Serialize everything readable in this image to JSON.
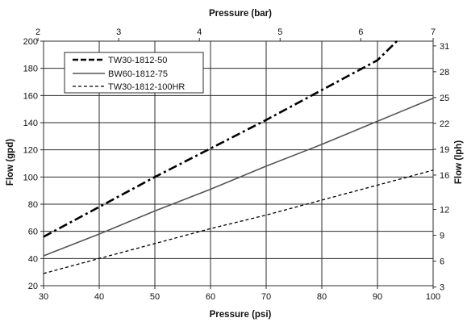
{
  "chart_data": {
    "type": "line",
    "xlabel": "Pressure (psi)",
    "x2label": "Pressure (bar)",
    "ylabel": "Flow (gpd)",
    "y2label": "Flow (lph)",
    "xlim": [
      30,
      100
    ],
    "ylim": [
      20,
      200
    ],
    "x_ticks": [
      "30",
      "40",
      "50",
      "60",
      "70",
      "80",
      "90",
      "100"
    ],
    "y_ticks": [
      "20",
      "40",
      "60",
      "80",
      "100",
      "120",
      "140",
      "160",
      "180",
      "200"
    ],
    "x2_ticks": [
      {
        "label": "2",
        "psi": 29.0
      },
      {
        "label": "3",
        "psi": 43.5
      },
      {
        "label": "4",
        "psi": 58.0
      },
      {
        "label": "5",
        "psi": 72.5
      },
      {
        "label": "6",
        "psi": 87.0
      },
      {
        "label": "7",
        "psi": 101.5
      }
    ],
    "y2_ticks": [
      {
        "label": "3",
        "gpd": 19.0
      },
      {
        "label": "6",
        "gpd": 38.0
      },
      {
        "label": "9",
        "gpd": 57.1
      },
      {
        "label": "12",
        "gpd": 76.1
      },
      {
        "label": "16",
        "gpd": 101.4
      },
      {
        "label": "19",
        "gpd": 120.4
      },
      {
        "label": "22",
        "gpd": 139.5
      },
      {
        "label": "25",
        "gpd": 158.5
      },
      {
        "label": "28",
        "gpd": 177.5
      },
      {
        "label": "31",
        "gpd": 196.5
      }
    ],
    "grid": true,
    "legend_position": "top-left",
    "series": [
      {
        "name": "TW30-1812-50",
        "style": "dash-dot-bold",
        "color": "#000000",
        "x": [
          30,
          40,
          50,
          60,
          70,
          80,
          90,
          93.5
        ],
        "y": [
          56,
          78,
          100,
          121,
          142,
          164,
          186,
          200
        ]
      },
      {
        "name": "BW60-1812-75",
        "style": "solid",
        "color": "#555555",
        "x": [
          30,
          40,
          50,
          60,
          70,
          80,
          90,
          100
        ],
        "y": [
          42,
          58,
          75,
          91,
          108,
          124,
          141,
          158
        ]
      },
      {
        "name": "TW30-1812-100HR",
        "style": "dashed",
        "color": "#000000",
        "x": [
          30,
          40,
          50,
          60,
          70,
          80,
          90,
          100
        ],
        "y": [
          29,
          40,
          51,
          62,
          72,
          83,
          94,
          105
        ]
      }
    ]
  }
}
